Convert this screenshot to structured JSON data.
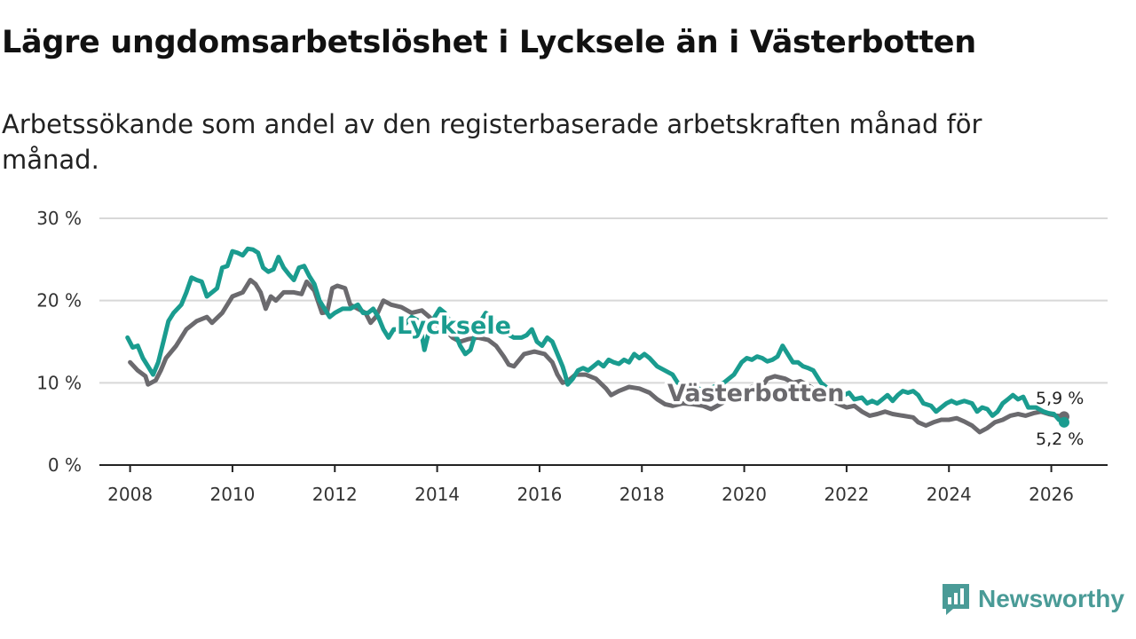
{
  "header": {
    "title": "Lägre ungdomsarbetslöshet i Lycksele än i Västerbotten",
    "subtitle": "Arbetssökande som andel av den registerbaserade arbetskraften månad för månad."
  },
  "brand": {
    "name": "Newsworthy",
    "icon": "newsworthy-logo-icon",
    "color": "#4a9b97"
  },
  "chart_data": {
    "type": "line",
    "title": "Lägre ungdomsarbetslöshet i Lycksele än i Västerbotten",
    "subtitle": "Arbetssökande som andel av den registerbaserade arbetskraften månad för månad.",
    "xlabel": "",
    "ylabel": "",
    "xlim": [
      2007.4,
      2027.1
    ],
    "ylim": [
      0,
      30
    ],
    "x_ticks": [
      2008,
      2010,
      2012,
      2014,
      2016,
      2018,
      2020,
      2022,
      2024,
      2026
    ],
    "y_ticks": [
      0,
      10,
      20,
      30
    ],
    "y_tick_labels": [
      "0 %",
      "10 %",
      "20 %",
      "30 %"
    ],
    "grid": true,
    "series": [
      {
        "name": "Västerbotten",
        "color": "#6b6a6e",
        "inline_label": "Västerbotten",
        "end_label": "5,9 %",
        "points": [
          [
            2008.0,
            12.5
          ],
          [
            2008.15,
            11.5
          ],
          [
            2008.3,
            10.8
          ],
          [
            2008.35,
            9.8
          ],
          [
            2008.5,
            10.3
          ],
          [
            2008.6,
            11.5
          ],
          [
            2008.7,
            13.0
          ],
          [
            2008.9,
            14.5
          ],
          [
            2009.1,
            16.5
          ],
          [
            2009.3,
            17.5
          ],
          [
            2009.5,
            18.0
          ],
          [
            2009.6,
            17.3
          ],
          [
            2009.8,
            18.5
          ],
          [
            2010.0,
            20.5
          ],
          [
            2010.2,
            21.0
          ],
          [
            2010.35,
            22.5
          ],
          [
            2010.45,
            22.0
          ],
          [
            2010.55,
            21.0
          ],
          [
            2010.65,
            19.0
          ],
          [
            2010.75,
            20.5
          ],
          [
            2010.85,
            20.0
          ],
          [
            2011.0,
            21.0
          ],
          [
            2011.2,
            21.0
          ],
          [
            2011.35,
            20.8
          ],
          [
            2011.45,
            22.3
          ],
          [
            2011.6,
            21.2
          ],
          [
            2011.75,
            18.5
          ],
          [
            2011.85,
            18.6
          ],
          [
            2011.95,
            21.5
          ],
          [
            2012.05,
            21.8
          ],
          [
            2012.2,
            21.5
          ],
          [
            2012.3,
            19.5
          ],
          [
            2012.45,
            19.0
          ],
          [
            2012.6,
            18.5
          ],
          [
            2012.7,
            17.3
          ],
          [
            2012.8,
            18.0
          ],
          [
            2012.95,
            20.0
          ],
          [
            2013.1,
            19.5
          ],
          [
            2013.3,
            19.2
          ],
          [
            2013.5,
            18.5
          ],
          [
            2013.7,
            18.8
          ],
          [
            2013.85,
            18.0
          ],
          [
            2014.0,
            17.0
          ],
          [
            2014.15,
            16.5
          ],
          [
            2014.3,
            15.5
          ],
          [
            2014.45,
            15.0
          ],
          [
            2014.6,
            15.3
          ],
          [
            2014.8,
            15.5
          ],
          [
            2015.0,
            15.2
          ],
          [
            2015.15,
            14.5
          ],
          [
            2015.3,
            13.2
          ],
          [
            2015.4,
            12.2
          ],
          [
            2015.5,
            12.0
          ],
          [
            2015.7,
            13.5
          ],
          [
            2015.9,
            13.8
          ],
          [
            2016.1,
            13.5
          ],
          [
            2016.25,
            12.5
          ],
          [
            2016.35,
            11.0
          ],
          [
            2016.45,
            10.0
          ],
          [
            2016.55,
            10.2
          ],
          [
            2016.7,
            11.0
          ],
          [
            2016.9,
            11.0
          ],
          [
            2017.1,
            10.5
          ],
          [
            2017.3,
            9.3
          ],
          [
            2017.4,
            8.5
          ],
          [
            2017.55,
            9.0
          ],
          [
            2017.75,
            9.5
          ],
          [
            2017.95,
            9.3
          ],
          [
            2018.15,
            8.8
          ],
          [
            2018.3,
            8.0
          ],
          [
            2018.45,
            7.4
          ],
          [
            2018.6,
            7.2
          ],
          [
            2018.8,
            7.5
          ],
          [
            2019.0,
            7.4
          ],
          [
            2019.2,
            7.2
          ],
          [
            2019.35,
            6.8
          ],
          [
            2019.5,
            7.3
          ],
          [
            2019.7,
            8.0
          ],
          [
            2019.9,
            9.0
          ],
          [
            2020.15,
            9.5
          ],
          [
            2020.3,
            9.0
          ],
          [
            2020.45,
            10.5
          ],
          [
            2020.6,
            10.8
          ],
          [
            2020.8,
            10.5
          ],
          [
            2020.95,
            10.0
          ],
          [
            2021.1,
            10.2
          ],
          [
            2021.3,
            9.5
          ],
          [
            2021.5,
            8.5
          ],
          [
            2021.7,
            7.8
          ],
          [
            2021.85,
            7.4
          ],
          [
            2022.0,
            7.0
          ],
          [
            2022.15,
            7.2
          ],
          [
            2022.3,
            6.5
          ],
          [
            2022.45,
            6.0
          ],
          [
            2022.6,
            6.2
          ],
          [
            2022.75,
            6.5
          ],
          [
            2022.9,
            6.2
          ],
          [
            2023.1,
            6.0
          ],
          [
            2023.3,
            5.8
          ],
          [
            2023.4,
            5.2
          ],
          [
            2023.55,
            4.8
          ],
          [
            2023.7,
            5.2
          ],
          [
            2023.85,
            5.5
          ],
          [
            2024.0,
            5.5
          ],
          [
            2024.15,
            5.7
          ],
          [
            2024.3,
            5.3
          ],
          [
            2024.45,
            4.8
          ],
          [
            2024.6,
            4.0
          ],
          [
            2024.75,
            4.5
          ],
          [
            2024.9,
            5.2
          ],
          [
            2025.05,
            5.5
          ],
          [
            2025.2,
            6.0
          ],
          [
            2025.35,
            6.2
          ],
          [
            2025.5,
            6.0
          ],
          [
            2025.65,
            6.3
          ],
          [
            2025.8,
            6.5
          ],
          [
            2025.95,
            6.2
          ],
          [
            2026.1,
            6.0
          ],
          [
            2026.25,
            5.9
          ]
        ]
      },
      {
        "name": "Lycksele",
        "color": "#1a9c8f",
        "inline_label": "Lycksele",
        "end_label": "5,2 %",
        "points": [
          [
            2007.95,
            15.5
          ],
          [
            2008.05,
            14.3
          ],
          [
            2008.15,
            14.5
          ],
          [
            2008.25,
            13.0
          ],
          [
            2008.35,
            12.0
          ],
          [
            2008.45,
            11.0
          ],
          [
            2008.55,
            12.5
          ],
          [
            2008.65,
            15.0
          ],
          [
            2008.75,
            17.5
          ],
          [
            2008.85,
            18.5
          ],
          [
            2009.0,
            19.5
          ],
          [
            2009.1,
            21.0
          ],
          [
            2009.2,
            22.8
          ],
          [
            2009.3,
            22.5
          ],
          [
            2009.4,
            22.3
          ],
          [
            2009.5,
            20.5
          ],
          [
            2009.6,
            21.0
          ],
          [
            2009.7,
            21.5
          ],
          [
            2009.8,
            24.0
          ],
          [
            2009.9,
            24.2
          ],
          [
            2010.0,
            26.0
          ],
          [
            2010.1,
            25.8
          ],
          [
            2010.2,
            25.5
          ],
          [
            2010.3,
            26.3
          ],
          [
            2010.4,
            26.2
          ],
          [
            2010.5,
            25.8
          ],
          [
            2010.6,
            24.0
          ],
          [
            2010.7,
            23.5
          ],
          [
            2010.8,
            23.8
          ],
          [
            2010.9,
            25.3
          ],
          [
            2011.0,
            24.0
          ],
          [
            2011.1,
            23.2
          ],
          [
            2011.2,
            22.5
          ],
          [
            2011.3,
            24.0
          ],
          [
            2011.4,
            24.2
          ],
          [
            2011.5,
            23.0
          ],
          [
            2011.6,
            22.0
          ],
          [
            2011.7,
            20.0
          ],
          [
            2011.8,
            19.0
          ],
          [
            2011.9,
            18.0
          ],
          [
            2012.0,
            18.5
          ],
          [
            2012.15,
            19.0
          ],
          [
            2012.3,
            19.0
          ],
          [
            2012.45,
            19.5
          ],
          [
            2012.55,
            18.5
          ],
          [
            2012.65,
            18.5
          ],
          [
            2012.75,
            19.0
          ],
          [
            2012.85,
            18.0
          ],
          [
            2012.95,
            16.5
          ],
          [
            2013.05,
            15.5
          ],
          [
            2013.15,
            16.5
          ],
          [
            2013.25,
            16.5
          ],
          [
            2013.35,
            17.0
          ],
          [
            2013.5,
            18.0
          ],
          [
            2013.65,
            17.5
          ],
          [
            2013.75,
            14.0
          ],
          [
            2013.85,
            16.5
          ],
          [
            2013.95,
            18.0
          ],
          [
            2014.05,
            19.0
          ],
          [
            2014.15,
            18.5
          ],
          [
            2014.25,
            17.5
          ],
          [
            2014.35,
            16.0
          ],
          [
            2014.45,
            14.5
          ],
          [
            2014.55,
            13.5
          ],
          [
            2014.65,
            14.0
          ],
          [
            2014.75,
            16.0
          ],
          [
            2014.85,
            17.5
          ],
          [
            2014.95,
            18.5
          ],
          [
            2015.05,
            18.0
          ],
          [
            2015.2,
            17.0
          ],
          [
            2015.35,
            16.0
          ],
          [
            2015.5,
            15.5
          ],
          [
            2015.65,
            15.5
          ],
          [
            2015.75,
            15.8
          ],
          [
            2015.85,
            16.5
          ],
          [
            2015.95,
            15.0
          ],
          [
            2016.05,
            14.5
          ],
          [
            2016.15,
            15.5
          ],
          [
            2016.25,
            15.0
          ],
          [
            2016.35,
            13.5
          ],
          [
            2016.45,
            12.0
          ],
          [
            2016.5,
            11.0
          ],
          [
            2016.55,
            9.8
          ],
          [
            2016.65,
            10.5
          ],
          [
            2016.75,
            11.5
          ],
          [
            2016.85,
            11.8
          ],
          [
            2016.95,
            11.5
          ],
          [
            2017.05,
            12.0
          ],
          [
            2017.15,
            12.5
          ],
          [
            2017.25,
            12.0
          ],
          [
            2017.35,
            12.8
          ],
          [
            2017.45,
            12.5
          ],
          [
            2017.55,
            12.3
          ],
          [
            2017.65,
            12.8
          ],
          [
            2017.75,
            12.5
          ],
          [
            2017.85,
            13.5
          ],
          [
            2017.95,
            13.0
          ],
          [
            2018.05,
            13.5
          ],
          [
            2018.15,
            13.0
          ],
          [
            2018.3,
            12.0
          ],
          [
            2018.45,
            11.5
          ],
          [
            2018.6,
            11.0
          ],
          [
            2018.7,
            10.0
          ],
          [
            2018.85,
            9.8
          ],
          [
            2019.05,
            9.5
          ],
          [
            2019.2,
            9.0
          ],
          [
            2019.4,
            9.5
          ],
          [
            2019.6,
            10.0
          ],
          [
            2019.8,
            11.0
          ],
          [
            2019.95,
            12.5
          ],
          [
            2020.05,
            13.0
          ],
          [
            2020.15,
            12.8
          ],
          [
            2020.25,
            13.2
          ],
          [
            2020.35,
            13.0
          ],
          [
            2020.45,
            12.6
          ],
          [
            2020.55,
            12.8
          ],
          [
            2020.65,
            13.2
          ],
          [
            2020.75,
            14.5
          ],
          [
            2020.85,
            13.5
          ],
          [
            2020.95,
            12.5
          ],
          [
            2021.05,
            12.5
          ],
          [
            2021.15,
            12.0
          ],
          [
            2021.25,
            11.8
          ],
          [
            2021.35,
            11.5
          ],
          [
            2021.5,
            10.0
          ],
          [
            2021.6,
            9.5
          ],
          [
            2021.75,
            9.0
          ],
          [
            2021.95,
            8.5
          ],
          [
            2022.05,
            8.8
          ],
          [
            2022.15,
            8.0
          ],
          [
            2022.3,
            8.2
          ],
          [
            2022.4,
            7.5
          ],
          [
            2022.5,
            7.8
          ],
          [
            2022.6,
            7.5
          ],
          [
            2022.7,
            8.0
          ],
          [
            2022.8,
            8.5
          ],
          [
            2022.9,
            7.8
          ],
          [
            2023.0,
            8.5
          ],
          [
            2023.1,
            9.0
          ],
          [
            2023.2,
            8.8
          ],
          [
            2023.3,
            9.0
          ],
          [
            2023.4,
            8.5
          ],
          [
            2023.5,
            7.5
          ],
          [
            2023.65,
            7.2
          ],
          [
            2023.75,
            6.5
          ],
          [
            2023.85,
            7.0
          ],
          [
            2023.95,
            7.5
          ],
          [
            2024.05,
            7.8
          ],
          [
            2024.15,
            7.5
          ],
          [
            2024.3,
            7.8
          ],
          [
            2024.45,
            7.5
          ],
          [
            2024.55,
            6.5
          ],
          [
            2024.65,
            7.0
          ],
          [
            2024.75,
            6.8
          ],
          [
            2024.85,
            6.0
          ],
          [
            2024.95,
            6.5
          ],
          [
            2025.05,
            7.5
          ],
          [
            2025.15,
            8.0
          ],
          [
            2025.25,
            8.5
          ],
          [
            2025.35,
            8.0
          ],
          [
            2025.45,
            8.3
          ],
          [
            2025.55,
            7.0
          ],
          [
            2025.7,
            7.0
          ],
          [
            2025.85,
            6.5
          ],
          [
            2025.95,
            6.3
          ],
          [
            2026.05,
            6.2
          ],
          [
            2026.15,
            5.5
          ],
          [
            2026.25,
            5.2
          ]
        ]
      }
    ]
  }
}
